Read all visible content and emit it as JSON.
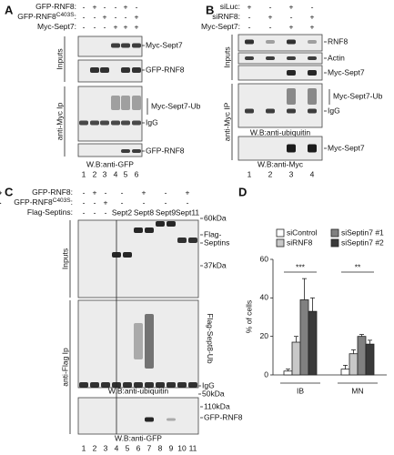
{
  "panels": [
    {
      "label": "A",
      "conditions": [
        {
          "text": "GFP-RNF8:",
          "marks": [
            "-",
            "+",
            "-",
            "-",
            "+",
            "-"
          ]
        },
        {
          "text": "GFP-RNF8",
          "sup": "C403S",
          "tail": ":",
          "marks": [
            "-",
            "-",
            "+",
            "-",
            "-",
            "+"
          ]
        },
        {
          "text": "Myc-Sept7:",
          "marks": [
            "-",
            "-",
            "-",
            "+",
            "+",
            "+"
          ]
        }
      ],
      "sections": [
        "Inputs",
        "anti-Myc Ip"
      ],
      "bands": [
        "Myc-Sept7",
        "GFP-RNF8",
        "Myc-Sept7-Ub",
        "IgG",
        "GFP-RNF8"
      ],
      "captions": [
        "W.B:anti-GFP"
      ],
      "lanes": [
        "1",
        "2",
        "3",
        "4",
        "5",
        "6"
      ]
    },
    {
      "label": "B",
      "conditions": [
        {
          "text": "siLuc:",
          "marks": [
            "+",
            "-",
            "+",
            "-"
          ]
        },
        {
          "text": "siRNF8:",
          "marks": [
            "-",
            "+",
            "-",
            "+"
          ]
        },
        {
          "text": "Myc-Sept7:",
          "marks": [
            "-",
            "-",
            "+",
            "+"
          ]
        }
      ],
      "sections": [
        "Inputs",
        "anti-Myc IP"
      ],
      "bands": [
        "RNF8",
        "Actin",
        "Myc-Sept7",
        "Myc-Sept7-Ub",
        "IgG",
        "Myc-Sept7"
      ],
      "captions": [
        "W.B:anti-ubiquitin",
        "W.B:anti-Myc"
      ],
      "lanes": [
        "1",
        "2",
        "3",
        "4"
      ]
    },
    {
      "label": "C",
      "conditions": [
        {
          "text": "GFP-RNF8:",
          "marks": [
            "-",
            "+",
            "-",
            "-",
            "+",
            "-",
            "+",
            "-",
            "+",
            "-",
            "+"
          ]
        },
        {
          "text": "GFP-RNF8",
          "sup": "C403S",
          "tail": ":",
          "marks": [
            "-",
            "-",
            "+",
            "-",
            "-",
            "-",
            "-",
            "-",
            "-",
            "-",
            "-"
          ]
        },
        {
          "text": "Flag-Septins:",
          "marks": [
            "-",
            "-",
            "-",
            "Sept2",
            "Sept8",
            "Sept9",
            "Sept11"
          ]
        }
      ],
      "sections": [
        "Inputs",
        "anti-Flag Ip"
      ],
      "bands": [
        "60kDa",
        "Flag-",
        "Septins",
        "37kDa",
        "Flag-Sept8-Ub",
        "IgG",
        "50kDa",
        "110kDa",
        "GFP-RNF8"
      ],
      "captions": [
        "W.B:anti-ubiquitin",
        "W.B:anti-GFP"
      ],
      "lanes": [
        "1",
        "2",
        "3",
        "4",
        "5",
        "6",
        "7",
        "8",
        "9",
        "10",
        "11"
      ]
    }
  ],
  "chart_data": {
    "type": "bar",
    "label": "D",
    "ylabel": "% of cells",
    "categories": [
      "IB",
      "MN"
    ],
    "series": [
      {
        "name": "siControl",
        "color": "#ffffff",
        "values": [
          2,
          3
        ],
        "errors": [
          1,
          2
        ]
      },
      {
        "name": "siRNF8",
        "color": "#c8c8c8",
        "values": [
          17,
          11
        ],
        "errors": [
          3,
          2
        ]
      },
      {
        "name": "siSeptin7 #1",
        "color": "#808080",
        "values": [
          39,
          20
        ],
        "errors": [
          11,
          1
        ]
      },
      {
        "name": "siSeptin7 #2",
        "color": "#3a3a3a",
        "values": [
          33,
          16
        ],
        "errors": [
          7,
          2
        ]
      }
    ],
    "annotations": [
      "***",
      "**"
    ],
    "ylim": [
      0,
      60
    ],
    "yticks": [
      0,
      20,
      40,
      60
    ]
  }
}
